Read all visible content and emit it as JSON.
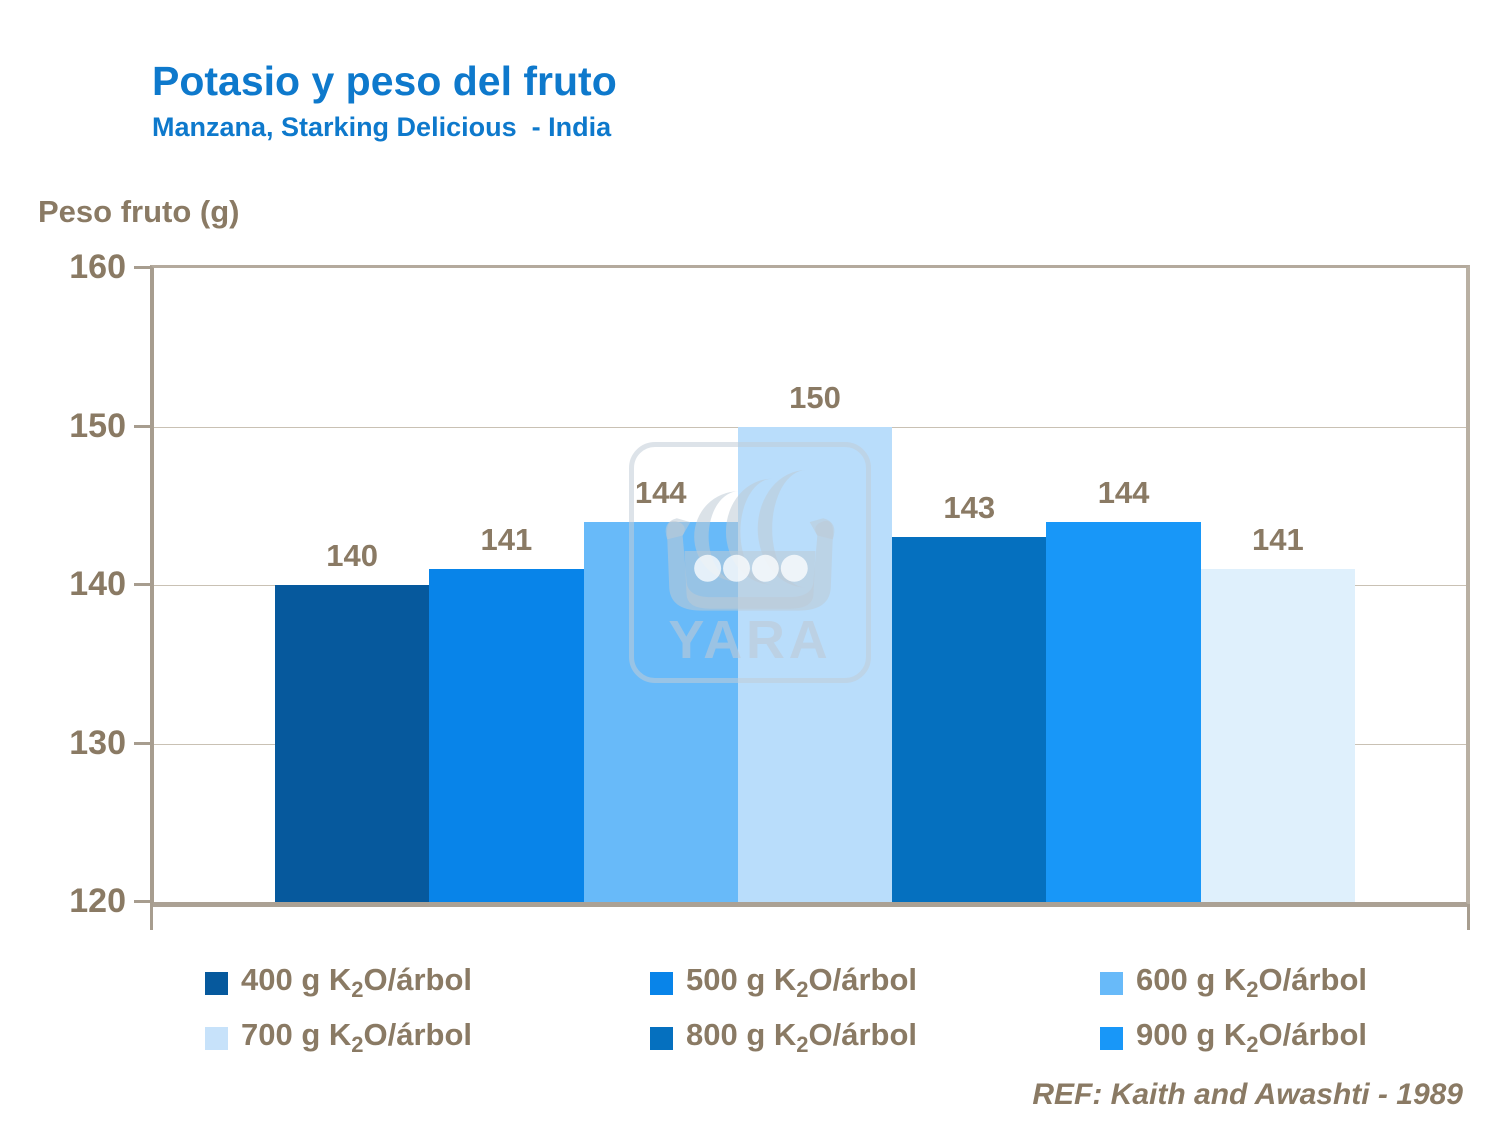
{
  "header": {
    "title": "Potasio y peso del fruto",
    "subtitle": "Manzana, Starking Delicious  - India"
  },
  "axis_caption": "Peso fruto (g)",
  "footer": {
    "ref": "REF: Kaith and Awashti - 1989"
  },
  "watermark": {
    "text": "YARA"
  },
  "colors": {
    "title_blue": "#0e79cc",
    "text_brown": "#8a7a64",
    "axis_taupe": "#a79d8f",
    "gridline": "#c9c1b4"
  },
  "chart_data": {
    "type": "bar",
    "title": "Potasio y peso del fruto",
    "subtitle": "Manzana, Starking Delicious - India",
    "xlabel": "",
    "ylabel": "Peso fruto (g)",
    "ylim": [
      120,
      160
    ],
    "yticks": [
      120,
      130,
      140,
      150,
      160
    ],
    "grid": "horizontal",
    "legend_position": "bottom",
    "value_labels": true,
    "series": [
      {
        "name": "400 g K₂O/árbol",
        "value": 140,
        "color": "#06599d"
      },
      {
        "name": "500 g K₂O/árbol",
        "value": 141,
        "color": "#0884e9"
      },
      {
        "name": "600 g K₂O/árbol",
        "value": 144,
        "color": "#68baf9"
      },
      {
        "name": "700 g K₂O/árbol",
        "value": 150,
        "color": "#b9ddfb"
      },
      {
        "name": "800 g K₂O/árbol",
        "value": 143,
        "color": "#0570bf"
      },
      {
        "name": "900 g K₂O/árbol",
        "value": 144,
        "color": "#1897f8"
      },
      {
        "name": "",
        "value": 141,
        "color": "#dff0fc"
      }
    ]
  },
  "legend": {
    "items": [
      {
        "pre": "400 g K",
        "sub": "2",
        "post": "O/árbol",
        "color": "#06599d"
      },
      {
        "pre": "500 g K",
        "sub": "2",
        "post": "O/árbol",
        "color": "#0884e9"
      },
      {
        "pre": "600 g K",
        "sub": "2",
        "post": "O/árbol",
        "color": "#68baf9"
      },
      {
        "pre": "700 g K",
        "sub": "2",
        "post": "O/árbol",
        "color": "#c7e2fa"
      },
      {
        "pre": "800 g K",
        "sub": "2",
        "post": "O/árbol",
        "color": "#0570bf"
      },
      {
        "pre": "900 g K",
        "sub": "2",
        "post": "O/árbol",
        "color": "#1897f8"
      }
    ]
  }
}
